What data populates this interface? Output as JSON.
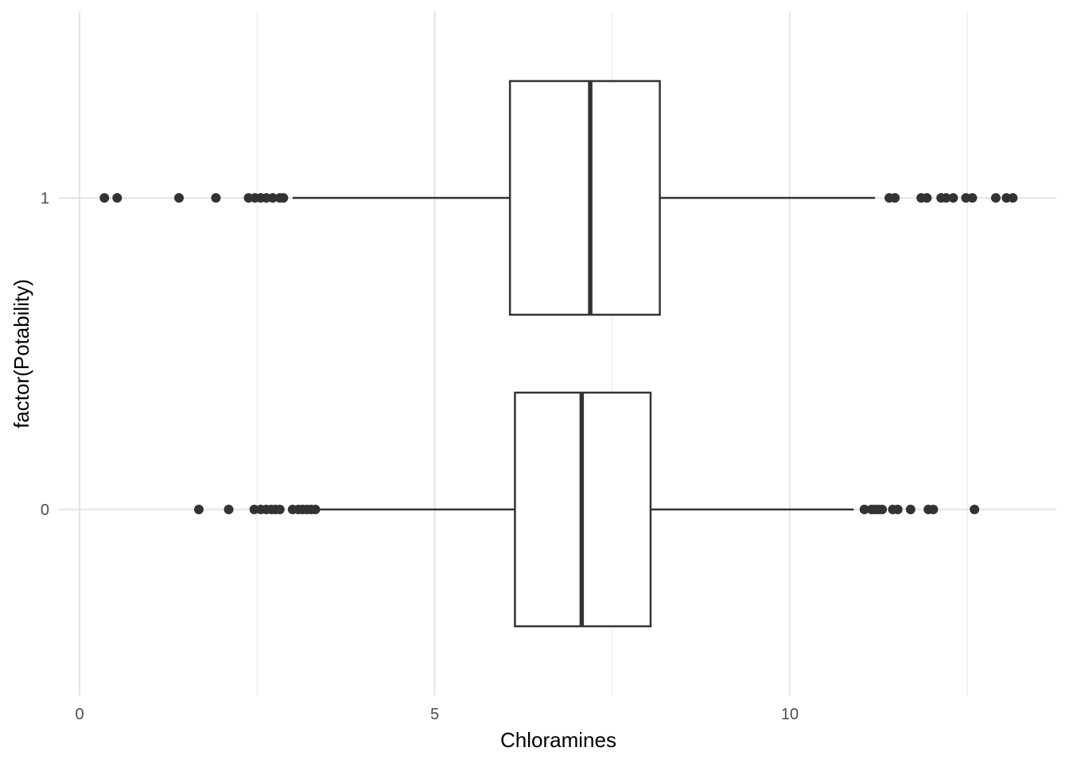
{
  "chart_data": {
    "type": "boxplot",
    "orientation": "horizontal",
    "xlabel": "Chloramines",
    "ylabel": "factor(Potability)",
    "xlim": [
      -0.3,
      13.75
    ],
    "x_ticks": [
      0,
      5,
      10
    ],
    "x_tick_labels": [
      "0",
      "5",
      "10"
    ],
    "categories": [
      "0",
      "1"
    ],
    "grid": true,
    "series": [
      {
        "category": "0",
        "whisker_low": 3.33,
        "q1": 6.13,
        "median": 7.07,
        "q3": 8.04,
        "whisker_high": 10.9,
        "outliers": [
          1.68,
          2.1,
          2.46,
          2.55,
          2.63,
          2.7,
          2.76,
          2.82,
          3.0,
          3.08,
          3.14,
          3.2,
          3.26,
          3.32,
          11.05,
          11.15,
          11.2,
          11.25,
          11.3,
          11.45,
          11.52,
          11.7,
          11.95,
          12.02,
          12.6
        ]
      },
      {
        "category": "1",
        "whisker_low": 3.0,
        "q1": 6.06,
        "median": 7.19,
        "q3": 8.17,
        "whisker_high": 11.2,
        "outliers": [
          0.35,
          0.53,
          1.4,
          1.92,
          2.38,
          2.47,
          2.55,
          2.63,
          2.72,
          2.82,
          2.87,
          11.4,
          11.48,
          11.85,
          11.93,
          12.13,
          12.2,
          12.3,
          12.48,
          12.57,
          12.9,
          13.05,
          13.14
        ]
      }
    ]
  }
}
